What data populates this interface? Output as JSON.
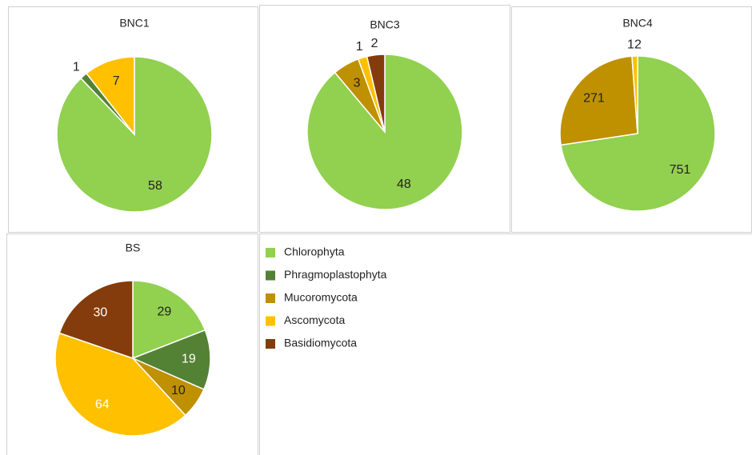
{
  "chart_data": [
    {
      "type": "pie",
      "title": "BNC1",
      "categories": [
        "Chlorophyta",
        "Phragmoplastophyta",
        "Ascomycota"
      ],
      "values": [
        58,
        1,
        7
      ],
      "colors": [
        "#92d050",
        "#548235",
        "#ffc000"
      ],
      "label_colors": [
        "#222222",
        "#222222",
        "#222222"
      ]
    },
    {
      "type": "pie",
      "title": "BNC3",
      "categories": [
        "Chlorophyta",
        "Mucoromycota",
        "Ascomycota",
        "Basidiomycota"
      ],
      "values": [
        48,
        3,
        1,
        2
      ],
      "colors": [
        "#92d050",
        "#bf9000",
        "#ffc000",
        "#843c0c"
      ],
      "label_colors": [
        "#222222",
        "#222222",
        "#222222",
        "#222222"
      ]
    },
    {
      "type": "pie",
      "title": "BNC4",
      "categories": [
        "Chlorophyta",
        "Mucoromycota",
        "Ascomycota"
      ],
      "values": [
        751,
        271,
        12
      ],
      "colors": [
        "#92d050",
        "#bf9000",
        "#ffc000"
      ],
      "label_colors": [
        "#222222",
        "#222222",
        "#222222"
      ]
    },
    {
      "type": "pie",
      "title": "BS",
      "categories": [
        "Chlorophyta",
        "Phragmoplastophyta",
        "Mucoromycota",
        "Ascomycota",
        "Basidiomycota"
      ],
      "values": [
        29,
        19,
        10,
        64,
        30
      ],
      "colors": [
        "#92d050",
        "#548235",
        "#bf9000",
        "#ffc000",
        "#843c0c"
      ],
      "label_colors": [
        "#222222",
        "#ffffff",
        "#222222",
        "#ffffff",
        "#ffffff"
      ]
    }
  ],
  "legend": {
    "names": [
      "Chlorophyta",
      "Phragmoplastophyta",
      "Mucoromycota",
      "Ascomycota",
      "Basidiomycota"
    ],
    "colors": [
      "#92d050",
      "#548235",
      "#bf9000",
      "#ffc000",
      "#843c0c"
    ]
  }
}
